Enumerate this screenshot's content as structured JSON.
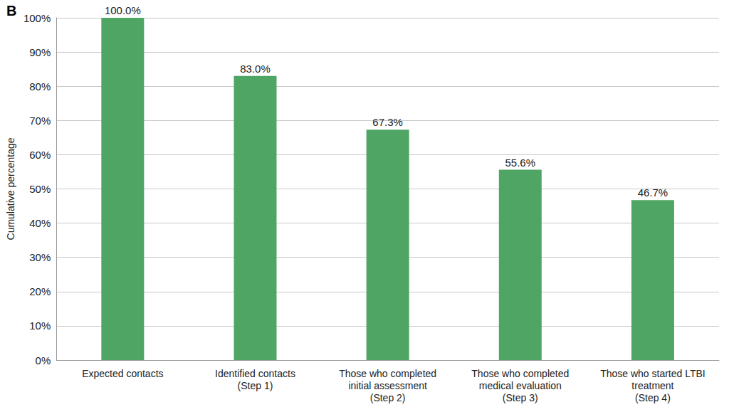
{
  "chart_data": {
    "type": "bar",
    "title": "B",
    "y_label": "Cumulative percentage",
    "categories": [
      "Expected contacts",
      "Identified contacts\n(Step 1)",
      "Those who completed\ninitial assessment\n(Step 2)",
      "Those who completed\nmedical evaluation\n(Step 3)",
      "Those who started LTBI\ntreatment\n(Step 4)"
    ],
    "values": [
      100.0,
      83.0,
      67.3,
      55.6,
      46.7
    ],
    "value_labels": [
      "100.0%",
      "83.0%",
      "67.3%",
      "55.6%",
      "46.7%"
    ],
    "data_labels": true,
    "color": "#4ea564",
    "ylim": [
      0,
      100
    ],
    "yticks": [
      {
        "value": 0,
        "label": "0%"
      },
      {
        "value": 10,
        "label": "10%"
      },
      {
        "value": 20,
        "label": "20%"
      },
      {
        "value": 30,
        "label": "30%"
      },
      {
        "value": 40,
        "label": "40%"
      },
      {
        "value": 50,
        "label": "50%"
      },
      {
        "value": 60,
        "label": "60%"
      },
      {
        "value": 70,
        "label": "70%"
      },
      {
        "value": 80,
        "label": "80%"
      },
      {
        "value": 90,
        "label": "90%"
      },
      {
        "value": 100,
        "label": "100%"
      }
    ],
    "grid": true
  }
}
